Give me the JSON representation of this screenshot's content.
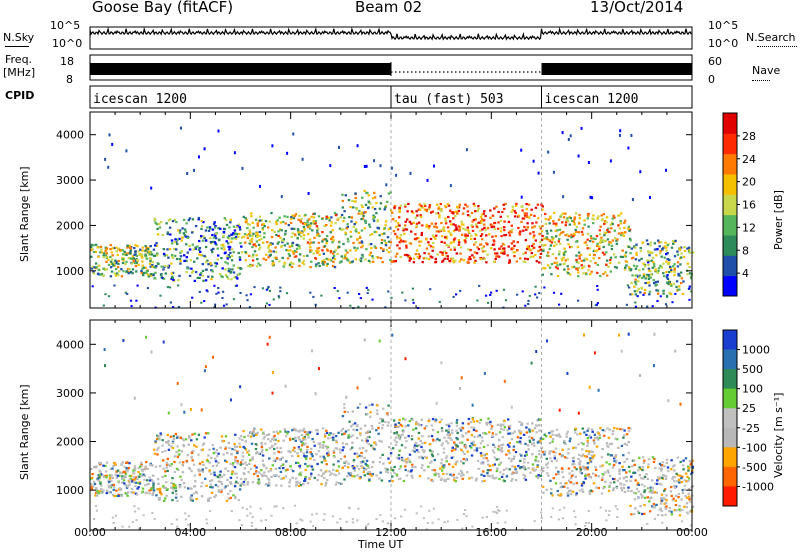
{
  "header": {
    "station": "Goose Bay (fitACF)",
    "beam": "Beam 02",
    "date": "13/Oct/2014"
  },
  "strips": {
    "nsky_label": "N.Sky",
    "nsky_ticks": [
      "10^5",
      "10^0"
    ],
    "nsearch_label": "N.Search",
    "nsearch_ticks": [
      "10^5",
      "10^0"
    ],
    "freq_label_1": "Freq.",
    "freq_label_2": "[MHz]",
    "freq_ticks": [
      "18",
      "8"
    ],
    "nave_label": "Nave",
    "nave_ticks": [
      "60",
      "0"
    ],
    "cpid_label": "CPID",
    "cpid_segments": [
      {
        "name": "icescan 1200",
        "start_h": 0,
        "end_h": 12
      },
      {
        "name": "tau (fast) 503",
        "start_h": 12,
        "end_h": 18
      },
      {
        "name": "icescan 1200",
        "start_h": 18,
        "end_h": 24
      }
    ]
  },
  "colors": {
    "power_scale": [
      "#0000ff",
      "#1f4fa8",
      "#2d8a5a",
      "#55b55a",
      "#c8d84a",
      "#f5c000",
      "#ff7a00",
      "#ff2a00",
      "#e00000"
    ],
    "velocity_scale": [
      "#1a3fd0",
      "#2a6fb0",
      "#2e8b57",
      "#66cc33",
      "#c0c0c0",
      "#b8b8b8",
      "#ffa500",
      "#ff6600",
      "#ff1a00"
    ]
  },
  "chart_data": [
    {
      "type": "heatmap",
      "title": "Power",
      "ylabel": "Slant Range [km]",
      "xlabel": "Time UT",
      "x_ticks": [
        "00:00",
        "04:00",
        "08:00",
        "12:00",
        "16:00",
        "20:00",
        "00:00"
      ],
      "xlim_hours": [
        0,
        24
      ],
      "ylim": [
        180,
        4500
      ],
      "y_ticks": [
        1000,
        2000,
        3000,
        4000
      ],
      "colorbar_label": "Power [dB]",
      "colorbar_ticks": [
        "4",
        "8",
        "12",
        "16",
        "20",
        "24",
        "28"
      ],
      "colorbar_range": [
        0,
        30
      ],
      "echo_regions": [
        {
          "t0": 0,
          "t1": 2.5,
          "r0": 900,
          "r1": 1600,
          "level": 0.45
        },
        {
          "t0": 2.5,
          "t1": 6,
          "r0": 800,
          "r1": 2200,
          "level": 0.3
        },
        {
          "t0": 6,
          "t1": 10,
          "r0": 1100,
          "r1": 2300,
          "level": 0.5
        },
        {
          "t0": 10,
          "t1": 12,
          "r0": 1200,
          "r1": 2800,
          "level": 0.45
        },
        {
          "t0": 12,
          "t1": 18,
          "r0": 1200,
          "r1": 2500,
          "level": 0.75
        },
        {
          "t0": 18,
          "t1": 21.5,
          "r0": 900,
          "r1": 2300,
          "level": 0.55
        },
        {
          "t0": 21.5,
          "t1": 24,
          "r0": 500,
          "r1": 1700,
          "level": 0.4
        }
      ]
    },
    {
      "type": "heatmap",
      "title": "Velocity",
      "ylabel": "Slant Range [km]",
      "xlabel": "Time UT",
      "x_ticks": [
        "00:00",
        "04:00",
        "08:00",
        "12:00",
        "16:00",
        "20:00",
        "00:00"
      ],
      "xlim_hours": [
        0,
        24
      ],
      "ylim": [
        180,
        4500
      ],
      "y_ticks": [
        1000,
        2000,
        3000,
        4000
      ],
      "colorbar_label": "Velocity [m s⁻¹]",
      "colorbar_ticks": [
        "1000",
        "500",
        "100",
        "25",
        "-25",
        "-100",
        "-500",
        "-1000"
      ],
      "echo_regions": [
        {
          "t0": 0,
          "t1": 2.5,
          "r0": 900,
          "r1": 1600,
          "level": 0.45
        },
        {
          "t0": 2.5,
          "t1": 6,
          "r0": 800,
          "r1": 2200,
          "level": 0.5
        },
        {
          "t0": 6,
          "t1": 10,
          "r0": 1100,
          "r1": 2300,
          "level": 0.4
        },
        {
          "t0": 10,
          "t1": 12,
          "r0": 1200,
          "r1": 2800,
          "level": 0.5
        },
        {
          "t0": 12,
          "t1": 18,
          "r0": 1200,
          "r1": 2500,
          "level": 0.5
        },
        {
          "t0": 18,
          "t1": 21.5,
          "r0": 900,
          "r1": 2300,
          "level": 0.6
        },
        {
          "t0": 21.5,
          "t1": 24,
          "r0": 500,
          "r1": 1700,
          "level": 0.7
        }
      ]
    }
  ]
}
